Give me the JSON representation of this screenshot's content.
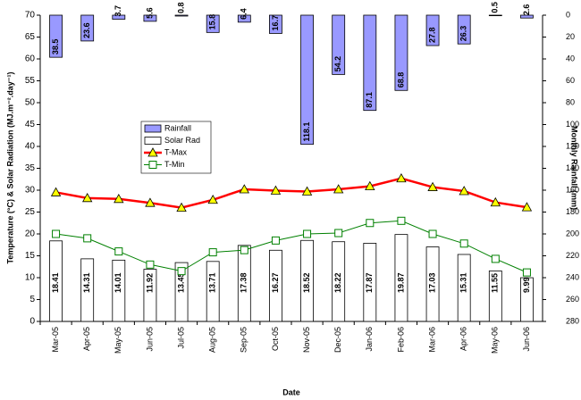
{
  "chart_data": {
    "type": "combo",
    "x_label": "Date",
    "y_label": "Temperature (°C)  & Solar Radiation (MJ.m⁻².day⁻¹)",
    "y2_label": "Monthly Rainfall (mm)",
    "categories": [
      "Mar-05",
      "Apr-05",
      "May-05",
      "Jun-05",
      "Jul-05",
      "Aug-05",
      "Sep-05",
      "Oct-05",
      "Nov-05",
      "Dec-05",
      "Jan-06",
      "Feb-06",
      "Mar-06",
      "Apr-06",
      "May-06",
      "Jun-06"
    ],
    "ylim": [
      0,
      70
    ],
    "yticks": [
      0,
      5,
      10,
      15,
      20,
      25,
      30,
      35,
      40,
      45,
      50,
      55,
      60,
      65,
      70
    ],
    "y2lim": [
      0,
      280
    ],
    "y2ticks": [
      0,
      20,
      40,
      60,
      80,
      100,
      120,
      140,
      160,
      180,
      200,
      220,
      240,
      260,
      280
    ],
    "y2_inverted": true,
    "legend": "center-left",
    "series": [
      {
        "name": "Rainfall",
        "kind": "bar",
        "axis": "y2",
        "color": "#9999ff",
        "values": [
          38.5,
          23.6,
          3.7,
          5.6,
          0.8,
          15.8,
          6.4,
          16.7,
          118.1,
          54.2,
          87.1,
          68.8,
          27.8,
          26.3,
          0.5,
          2.6
        ]
      },
      {
        "name": "Solar Rad",
        "kind": "bar",
        "color": "#ffffff",
        "values": [
          18.41,
          14.31,
          14.01,
          11.92,
          13.45,
          13.71,
          17.38,
          16.27,
          18.52,
          18.22,
          17.87,
          19.87,
          17.03,
          15.31,
          11.55,
          9.99
        ]
      },
      {
        "name": "T-Max",
        "kind": "line",
        "color": "#ff0000",
        "marker": "triangle",
        "marker_color": "#ffff00",
        "values": [
          29.5,
          28.2,
          28.0,
          27.1,
          26.0,
          27.8,
          30.2,
          29.9,
          29.7,
          30.2,
          30.9,
          32.7,
          30.7,
          29.8,
          27.2,
          26.1
        ]
      },
      {
        "name": "T-Min",
        "kind": "line",
        "color": "#008000",
        "marker": "square",
        "marker_color": "#ffffff",
        "values": [
          20.0,
          19.0,
          16.0,
          13.0,
          11.5,
          15.8,
          16.3,
          18.5,
          20.0,
          20.2,
          22.5,
          23.0,
          20.0,
          17.8,
          14.3,
          11.2
        ]
      }
    ]
  }
}
